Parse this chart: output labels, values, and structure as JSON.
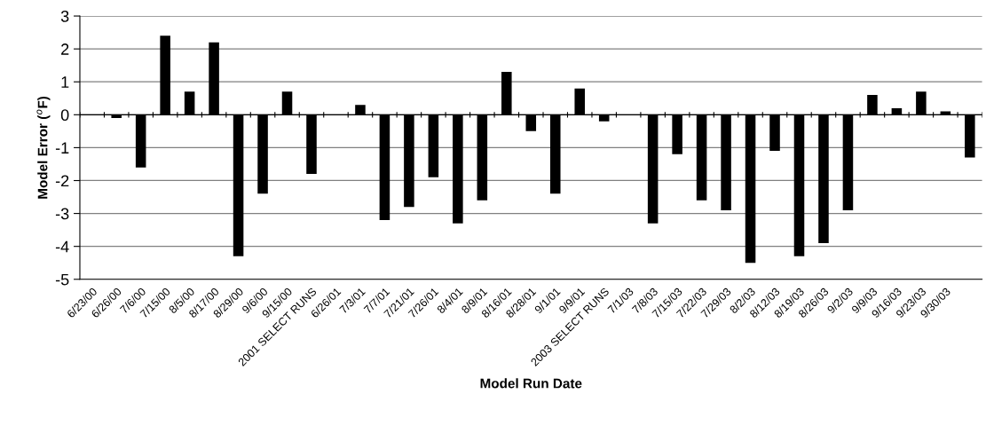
{
  "chart_data": {
    "type": "bar",
    "ylabel": "Model Error ($^{o}$F)",
    "xlabel": "Model Run Date",
    "categories": [
      "6/23/00",
      "6/26/00",
      "7/6/00",
      "7/15/00",
      "8/5/00",
      "8/17/00",
      "8/29/00",
      "9/6/00",
      "9/15/00",
      "2001 SELECT RUNS",
      "6/26/01",
      "7/3/01",
      "7/7/01",
      "7/21/01",
      "7/26/01",
      "8/4/01",
      "8/9/01",
      "8/16/01",
      "8/28/01",
      "9/1/01",
      "9/9/01",
      "2003 SELECT RUNS",
      "7/1/03",
      "7/8/03",
      "7/15/03",
      "7/22/03",
      "7/29/03",
      "8/2/03",
      "8/12/03",
      "8/19/03",
      "8/26/03",
      "9/2/03",
      "9/9/03",
      "9/16/03",
      "9/23/03",
      "9/30/03",
      null
    ],
    "values": [
      null,
      -0.1,
      -1.6,
      2.4,
      0.7,
      2.2,
      -4.3,
      -2.4,
      0.7,
      -1.8,
      null,
      0.3,
      -3.2,
      -2.8,
      -1.9,
      -3.3,
      -2.6,
      1.3,
      -0.5,
      -2.4,
      0.8,
      -0.2,
      null,
      -3.3,
      -1.2,
      -2.6,
      -2.9,
      -4.5,
      -1.1,
      -4.3,
      -3.9,
      -2.9,
      0.6,
      0.2,
      0.7,
      0.1,
      -1.3
    ],
    "color": "#000000",
    "ylim": [
      -5,
      3
    ],
    "yticks": [
      -5,
      -4,
      -3,
      -2,
      -1,
      0,
      1,
      2,
      3
    ],
    "grid": "y",
    "legend": false
  }
}
